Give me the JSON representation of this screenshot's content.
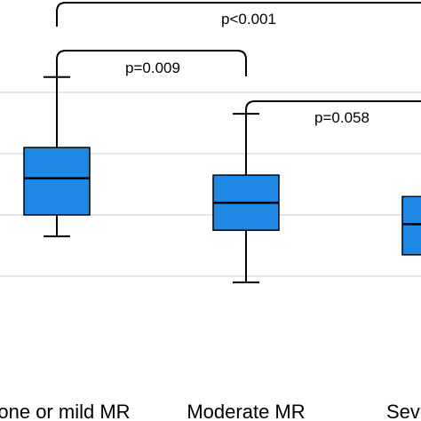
{
  "chart_data": {
    "type": "box",
    "categories": [
      "None or mild MR",
      "Moderate MR",
      "Severe MR"
    ],
    "boxes": [
      {
        "whisker_low": 1.65,
        "q1": 2.0,
        "median": 2.6,
        "q3": 3.1,
        "whisker_high": 4.25
      },
      {
        "whisker_low": 0.9,
        "q1": 1.75,
        "median": 2.2,
        "q3": 2.65,
        "whisker_high": 3.65
      },
      {
        "whisker_low": null,
        "q1": 1.35,
        "median": 1.85,
        "q3": 2.3,
        "whisker_high": null
      }
    ],
    "ylim": [
      0.3,
      5.2
    ],
    "gridlines": [
      1,
      2,
      3,
      4
    ],
    "grid": true,
    "box_color": "#1e88e5",
    "box_edge_color": "#000000",
    "comparisons": [
      {
        "pair": [
          0,
          1
        ],
        "label": "p=0.009"
      },
      {
        "pair": [
          1,
          2
        ],
        "label": "p=0.058"
      },
      {
        "pair": [
          0,
          2
        ],
        "label": "p<0.001"
      }
    ]
  }
}
